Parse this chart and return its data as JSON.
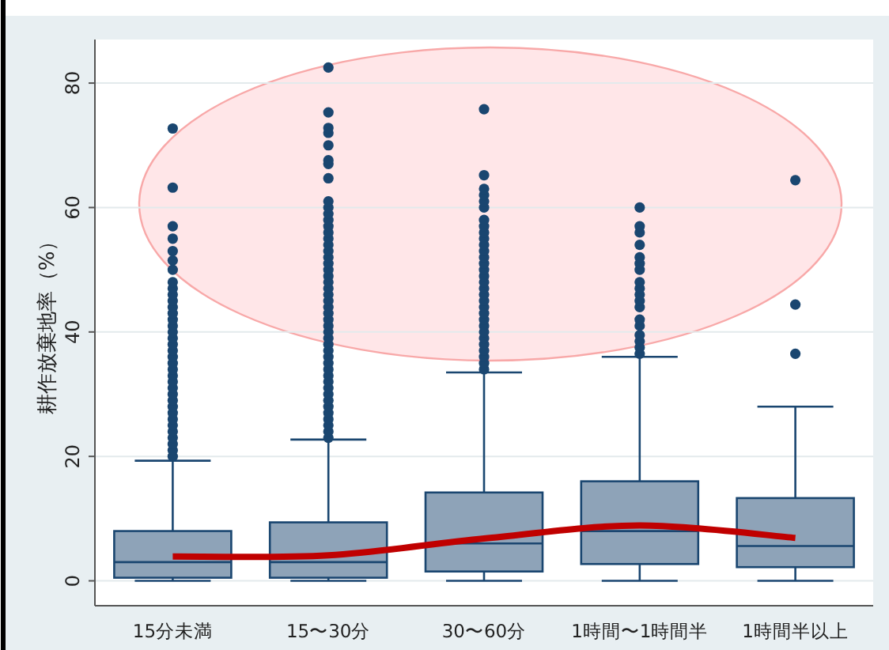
{
  "chart_data": {
    "type": "box",
    "ylabel": "耕作放棄地率（%）",
    "categories": [
      "15分未満",
      "15〜30分",
      "30〜60分",
      "1時間〜1時間半",
      "1時間半以上"
    ],
    "ylim": [
      -4,
      87
    ],
    "yticks": [
      0,
      20,
      40,
      60,
      80
    ],
    "grid": "y",
    "series": [
      {
        "color": "#8ea3b8",
        "marker": "circle",
        "boxes": [
          {
            "low": 0,
            "q1": 0.5,
            "median": 3,
            "q3": 8,
            "high": 19.3,
            "outliers": [
              20,
              21,
              22,
              23,
              24,
              25,
              26,
              27,
              28,
              29,
              30,
              31,
              32,
              33,
              34,
              35,
              36,
              37,
              38,
              39,
              40,
              41,
              42,
              43,
              44,
              45,
              46,
              47,
              48,
              50,
              51.5,
              53,
              55,
              57,
              63.2,
              72.7
            ]
          },
          {
            "low": 0,
            "q1": 0.5,
            "median": 3,
            "q3": 9.4,
            "high": 22.7,
            "outliers": [
              23,
              24,
              25,
              26,
              27,
              28,
              29,
              30,
              31,
              32,
              33,
              34,
              35,
              36,
              37,
              38,
              39,
              40,
              41,
              42,
              43,
              44,
              45,
              46,
              47,
              48,
              49,
              50,
              51,
              52,
              53,
              54,
              55,
              56,
              57,
              58,
              59,
              60,
              61,
              64.7,
              67,
              67.6,
              70,
              72,
              72.8,
              75.3,
              82.5
            ]
          },
          {
            "low": 0,
            "q1": 1.5,
            "median": 6,
            "q3": 14.2,
            "high": 33.5,
            "outliers": [
              34,
              35,
              36,
              37,
              38,
              39,
              40,
              41,
              42,
              43,
              44,
              45,
              46,
              47,
              48,
              49,
              50,
              51,
              52,
              53,
              54,
              55,
              56,
              57,
              58,
              60,
              61,
              62,
              63,
              65.2,
              75.8
            ]
          },
          {
            "low": 0,
            "q1": 2.7,
            "median": 8,
            "q3": 16,
            "high": 36,
            "outliers": [
              36.5,
              37.5,
              38.5,
              39.5,
              41,
              42,
              44,
              45,
              46,
              47,
              48,
              50,
              51,
              52,
              54,
              56,
              57,
              60
            ]
          },
          {
            "low": 0,
            "q1": 2.2,
            "median": 5.6,
            "q3": 13.3,
            "high": 28,
            "outliers": [
              36.5,
              44.4,
              64.4
            ]
          }
        ]
      },
      {
        "type": "line",
        "color": "#c00000",
        "values": [
          3.9,
          4.1,
          6.8,
          8.9,
          6.9
        ]
      }
    ]
  }
}
